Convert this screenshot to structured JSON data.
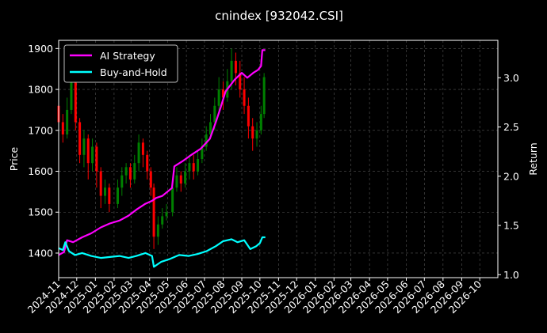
{
  "chart_data": {
    "type": "line",
    "title": "cnindex [932042.CSI]",
    "xlabel": "",
    "ylabel_left": "Price",
    "ylabel_right": "Return",
    "xlim": [
      "2024-11-01",
      "2026-10-31"
    ],
    "ylim_left": [
      1340,
      1920
    ],
    "ylim_right": [
      0.97,
      3.38
    ],
    "yticks_left": [
      1400,
      1500,
      1600,
      1700,
      1800,
      1900
    ],
    "yticks_right": [
      "1.0",
      "1.5",
      "2.0",
      "2.5",
      "3.0"
    ],
    "yticks_right_values": [
      1.0,
      1.5,
      2.0,
      2.5,
      3.0
    ],
    "xticks": [
      "2024-11",
      "2024-12",
      "2025-01",
      "2025-02",
      "2025-03",
      "2025-04",
      "2025-05",
      "2025-06",
      "2025-07",
      "2025-08",
      "2025-09",
      "2025-10",
      "2025-11",
      "2025-12",
      "2026-01",
      "2026-02",
      "2026-03",
      "2026-04",
      "2026-05",
      "2026-06",
      "2026-07",
      "2026-08",
      "2026-09",
      "2026-10"
    ],
    "grid": true,
    "legend_position": "top-left",
    "colors": {
      "up": "#008000",
      "down": "#ff0000",
      "ai": "#ff00ff",
      "bh": "#00ffff",
      "grid": "#555555",
      "axes": "#ffffff"
    },
    "price_series": {
      "name": "",
      "note_type": "candlestick",
      "points": [
        [
          "2024-11-01",
          1760,
          1720,
          1800,
          1690
        ],
        [
          "2024-11-08",
          1720,
          1690,
          1740,
          1670
        ],
        [
          "2024-11-15",
          1690,
          1750,
          1780,
          1680
        ],
        [
          "2024-11-22",
          1750,
          1820,
          1850,
          1740
        ],
        [
          "2024-11-29",
          1820,
          1720,
          1830,
          1700
        ],
        [
          "2024-12-06",
          1720,
          1640,
          1730,
          1620
        ],
        [
          "2024-12-13",
          1640,
          1680,
          1700,
          1610
        ],
        [
          "2024-12-20",
          1680,
          1620,
          1690,
          1580
        ],
        [
          "2024-12-27",
          1620,
          1660,
          1680,
          1600
        ],
        [
          "2025-01-03",
          1660,
          1600,
          1670,
          1560
        ],
        [
          "2025-01-10",
          1600,
          1540,
          1610,
          1510
        ],
        [
          "2025-01-17",
          1540,
          1560,
          1580,
          1520
        ],
        [
          "2025-01-24",
          1560,
          1520,
          1570,
          1500
        ],
        [
          "2025-02-07",
          1520,
          1560,
          1580,
          1510
        ],
        [
          "2025-02-14",
          1560,
          1590,
          1610,
          1540
        ],
        [
          "2025-02-21",
          1590,
          1610,
          1620,
          1570
        ],
        [
          "2025-02-28",
          1610,
          1580,
          1620,
          1560
        ],
        [
          "2025-03-07",
          1580,
          1620,
          1640,
          1570
        ],
        [
          "2025-03-14",
          1620,
          1670,
          1690,
          1600
        ],
        [
          "2025-03-21",
          1670,
          1640,
          1680,
          1610
        ],
        [
          "2025-03-28",
          1640,
          1600,
          1650,
          1580
        ],
        [
          "2025-04-03",
          1600,
          1560,
          1610,
          1540
        ],
        [
          "2025-04-08",
          1560,
          1440,
          1570,
          1410
        ],
        [
          "2025-04-15",
          1440,
          1470,
          1490,
          1420
        ],
        [
          "2025-04-22",
          1470,
          1490,
          1510,
          1460
        ],
        [
          "2025-04-29",
          1490,
          1500,
          1520,
          1480
        ],
        [
          "2025-05-09",
          1500,
          1560,
          1580,
          1490
        ],
        [
          "2025-05-16",
          1560,
          1590,
          1610,
          1550
        ],
        [
          "2025-05-23",
          1590,
          1570,
          1600,
          1550
        ],
        [
          "2025-05-30",
          1570,
          1600,
          1620,
          1560
        ],
        [
          "2025-06-06",
          1600,
          1620,
          1640,
          1580
        ],
        [
          "2025-06-13",
          1620,
          1600,
          1640,
          1580
        ],
        [
          "2025-06-20",
          1600,
          1630,
          1650,
          1590
        ],
        [
          "2025-06-27",
          1630,
          1660,
          1680,
          1620
        ],
        [
          "2025-07-04",
          1660,
          1690,
          1710,
          1650
        ],
        [
          "2025-07-11",
          1690,
          1720,
          1740,
          1680
        ],
        [
          "2025-07-18",
          1720,
          1760,
          1780,
          1700
        ],
        [
          "2025-07-25",
          1760,
          1800,
          1830,
          1740
        ],
        [
          "2025-08-01",
          1800,
          1780,
          1820,
          1750
        ],
        [
          "2025-08-08",
          1780,
          1820,
          1850,
          1770
        ],
        [
          "2025-08-15",
          1820,
          1870,
          1900,
          1800
        ],
        [
          "2025-08-22",
          1870,
          1840,
          1890,
          1810
        ],
        [
          "2025-08-29",
          1840,
          1800,
          1870,
          1780
        ],
        [
          "2025-09-05",
          1800,
          1760,
          1830,
          1740
        ],
        [
          "2025-09-12",
          1760,
          1710,
          1780,
          1680
        ],
        [
          "2025-09-19",
          1710,
          1680,
          1730,
          1650
        ],
        [
          "2025-09-26",
          1680,
          1700,
          1720,
          1660
        ],
        [
          "2025-10-03",
          1700,
          1740,
          1760,
          1690
        ],
        [
          "2025-10-08",
          1740,
          1830,
          1840,
          1730
        ]
      ]
    },
    "series": [
      {
        "name": "AI Strategy",
        "points": [
          [
            "2024-11-01",
            1.2
          ],
          [
            "2024-11-10",
            1.23
          ],
          [
            "2024-11-15",
            1.35
          ],
          [
            "2024-11-25",
            1.33
          ],
          [
            "2024-12-10",
            1.38
          ],
          [
            "2024-12-25",
            1.42
          ],
          [
            "2025-01-10",
            1.48
          ],
          [
            "2025-01-25",
            1.52
          ],
          [
            "2025-02-10",
            1.55
          ],
          [
            "2025-02-25",
            1.6
          ],
          [
            "2025-03-10",
            1.66
          ],
          [
            "2025-03-25",
            1.72
          ],
          [
            "2025-04-05",
            1.75
          ],
          [
            "2025-04-12",
            1.78
          ],
          [
            "2025-04-22",
            1.8
          ],
          [
            "2025-05-08",
            1.88
          ],
          [
            "2025-05-12",
            2.1
          ],
          [
            "2025-05-25",
            2.15
          ],
          [
            "2025-06-10",
            2.22
          ],
          [
            "2025-06-25",
            2.28
          ],
          [
            "2025-07-10",
            2.38
          ],
          [
            "2025-07-20",
            2.55
          ],
          [
            "2025-07-28",
            2.7
          ],
          [
            "2025-08-05",
            2.86
          ],
          [
            "2025-08-20",
            2.98
          ],
          [
            "2025-09-01",
            3.05
          ],
          [
            "2025-09-10",
            3.0
          ],
          [
            "2025-09-20",
            3.05
          ],
          [
            "2025-09-28",
            3.08
          ],
          [
            "2025-10-03",
            3.12
          ],
          [
            "2025-10-05",
            3.28
          ],
          [
            "2025-10-10",
            3.28
          ]
        ]
      },
      {
        "name": "Buy-and-Hold",
        "points": [
          [
            "2024-11-01",
            1.27
          ],
          [
            "2024-11-08",
            1.25
          ],
          [
            "2024-11-12",
            1.33
          ],
          [
            "2024-11-18",
            1.24
          ],
          [
            "2024-11-28",
            1.2
          ],
          [
            "2024-12-10",
            1.22
          ],
          [
            "2024-12-25",
            1.19
          ],
          [
            "2025-01-10",
            1.17
          ],
          [
            "2025-01-25",
            1.18
          ],
          [
            "2025-02-10",
            1.19
          ],
          [
            "2025-02-25",
            1.17
          ],
          [
            "2025-03-10",
            1.19
          ],
          [
            "2025-03-25",
            1.22
          ],
          [
            "2025-04-05",
            1.19
          ],
          [
            "2025-04-08",
            1.08
          ],
          [
            "2025-04-20",
            1.13
          ],
          [
            "2025-05-05",
            1.16
          ],
          [
            "2025-05-20",
            1.2
          ],
          [
            "2025-06-05",
            1.19
          ],
          [
            "2025-06-20",
            1.21
          ],
          [
            "2025-07-05",
            1.24
          ],
          [
            "2025-07-20",
            1.29
          ],
          [
            "2025-08-01",
            1.34
          ],
          [
            "2025-08-15",
            1.36
          ],
          [
            "2025-08-25",
            1.33
          ],
          [
            "2025-09-05",
            1.35
          ],
          [
            "2025-09-15",
            1.26
          ],
          [
            "2025-09-25",
            1.29
          ],
          [
            "2025-10-01",
            1.32
          ],
          [
            "2025-10-05",
            1.38
          ],
          [
            "2025-10-10",
            1.38
          ]
        ]
      }
    ]
  }
}
